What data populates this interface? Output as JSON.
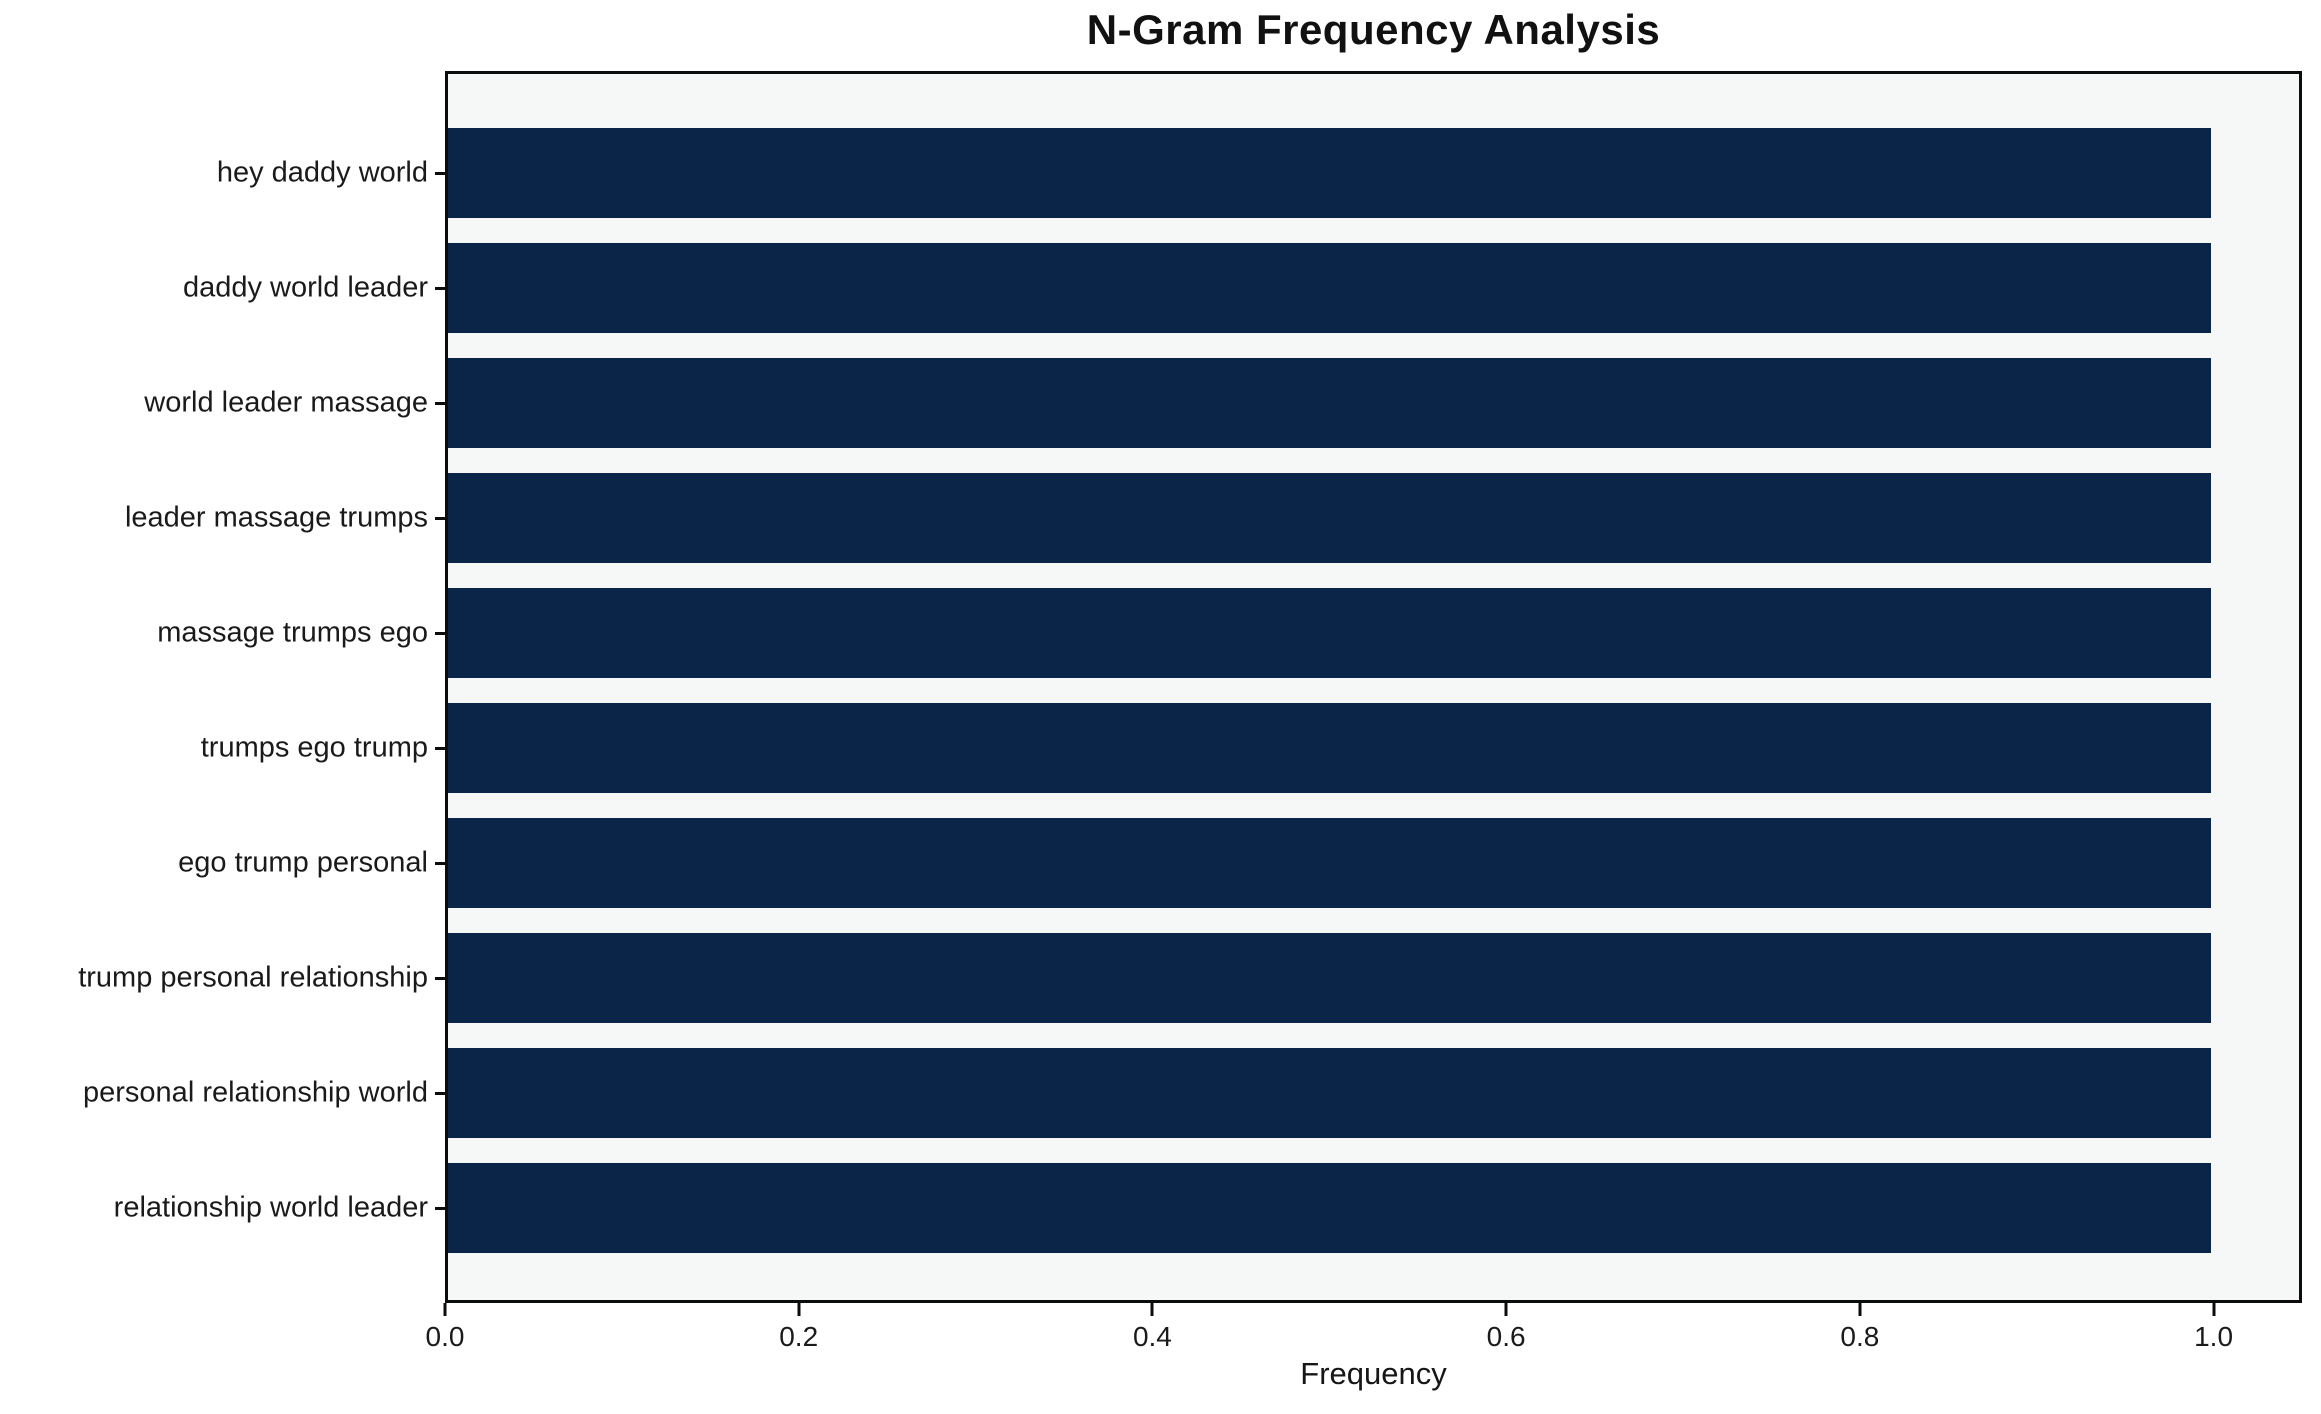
{
  "chart_data": {
    "type": "bar",
    "orientation": "horizontal",
    "title": "N-Gram Frequency Analysis",
    "xlabel": "Frequency",
    "ylabel": "",
    "categories": [
      "hey daddy world",
      "daddy world leader",
      "world leader massage",
      "leader massage trumps",
      "massage trumps ego",
      "trumps ego trump",
      "ego trump personal",
      "trump personal relationship",
      "personal relationship world",
      "relationship world leader"
    ],
    "values": [
      1.0,
      1.0,
      1.0,
      1.0,
      1.0,
      1.0,
      1.0,
      1.0,
      1.0,
      1.0
    ],
    "xlim": [
      0,
      1.05
    ],
    "x_tick_values": [
      0.0,
      0.2,
      0.4,
      0.6,
      0.8,
      1.0
    ],
    "x_tick_labels": [
      "0.0",
      "0.2",
      "0.4",
      "0.6",
      "0.8",
      "1.0"
    ],
    "grid": false,
    "legend_position": "none",
    "bar_color": "#0a2548",
    "plot_background": "#f6f7f7",
    "figure_background": "#ffffff",
    "spine_color": "#0c0c0c"
  }
}
